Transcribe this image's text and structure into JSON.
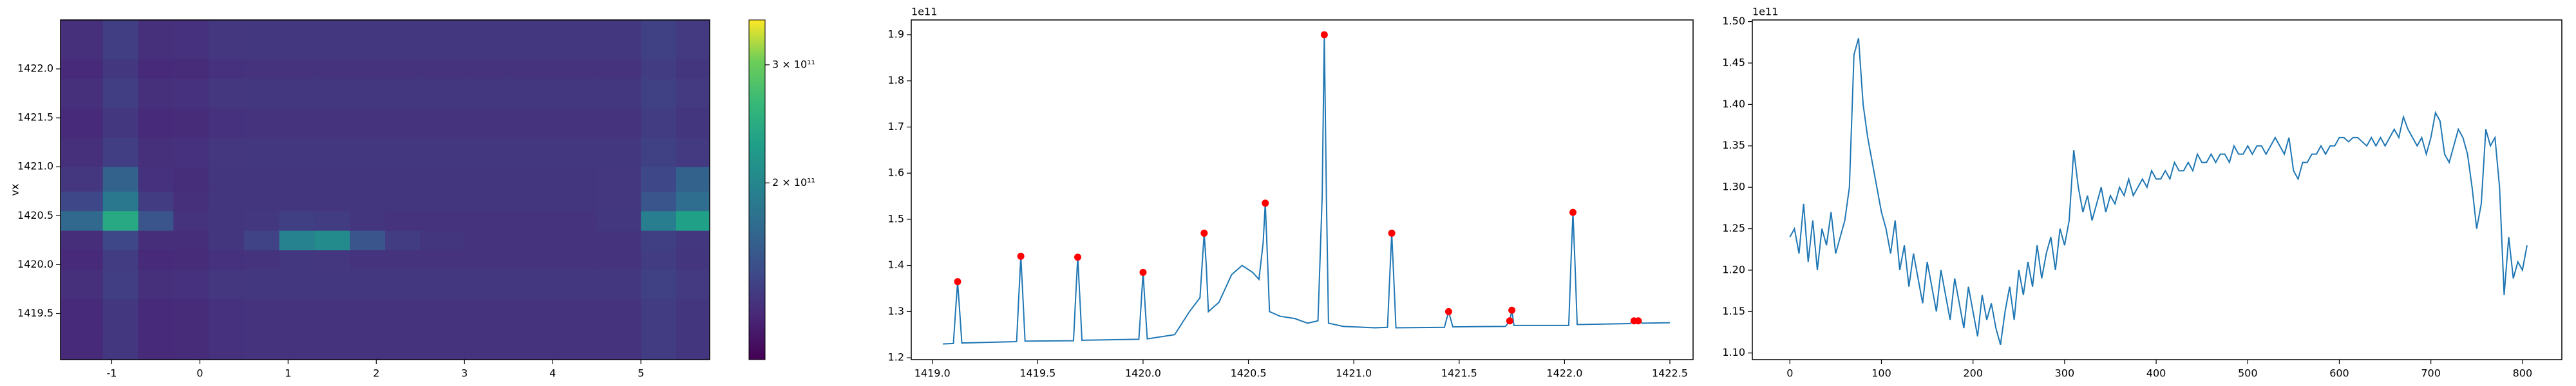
{
  "chart_data": [
    {
      "type": "heatmap",
      "ylabel": "vx",
      "x_edges": [
        -1.58,
        -1.1,
        -0.7,
        -0.3,
        0.1,
        0.5,
        0.9,
        1.3,
        1.7,
        2.1,
        2.5,
        3.0,
        3.5,
        4.0,
        4.5,
        5.0,
        5.4,
        5.78
      ],
      "y_edges": [
        1419.03,
        1419.35,
        1419.65,
        1419.95,
        1420.15,
        1420.35,
        1420.55,
        1420.75,
        1421.0,
        1421.3,
        1421.6,
        1421.9,
        1422.1,
        1422.5
      ],
      "z": [
        [
          128000000000.0,
          136000000000.0,
          128000000000.0,
          129000000000.0,
          132000000000.0,
          133000000000.0,
          133000000000.0,
          133000000000.0,
          133000000000.0,
          133000000000.0,
          133000000000.0,
          133000000000.0,
          133000000000.0,
          133000000000.0,
          133000000000.0,
          138000000000.0,
          134000000000.0
        ],
        [
          128000000000.0,
          136000000000.0,
          128000000000.0,
          129000000000.0,
          132000000000.0,
          133000000000.0,
          133000000000.0,
          133000000000.0,
          133000000000.0,
          133000000000.0,
          133000000000.0,
          133000000000.0,
          133000000000.0,
          133000000000.0,
          133000000000.0,
          138000000000.0,
          134000000000.0
        ],
        [
          131000000000.0,
          139000000000.0,
          131000000000.0,
          132000000000.0,
          135000000000.0,
          136000000000.0,
          136000000000.0,
          136000000000.0,
          136000000000.0,
          136000000000.0,
          136000000000.0,
          136000000000.0,
          136000000000.0,
          136000000000.0,
          136000000000.0,
          141000000000.0,
          137000000000.0
        ],
        [
          128000000000.0,
          138000000000.0,
          128000000000.0,
          129000000000.0,
          132000000000.0,
          133000000000.0,
          136000000000.0,
          135000000000.0,
          133000000000.0,
          133000000000.0,
          133000000000.0,
          133000000000.0,
          133000000000.0,
          133000000000.0,
          133000000000.0,
          138000000000.0,
          134000000000.0
        ],
        [
          130000000000.0,
          145000000000.0,
          130000000000.0,
          130000000000.0,
          134000000000.0,
          142000000000.0,
          195000000000.0,
          205000000000.0,
          155000000000.0,
          138000000000.0,
          134000000000.0,
          133000000000.0,
          133000000000.0,
          133000000000.0,
          133000000000.0,
          140000000000.0,
          136000000000.0
        ],
        [
          170000000000.0,
          240000000000.0,
          155000000000.0,
          133000000000.0,
          134000000000.0,
          136000000000.0,
          140000000000.0,
          138000000000.0,
          134000000000.0,
          133000000000.0,
          133000000000.0,
          133000000000.0,
          133000000000.0,
          133000000000.0,
          136000000000.0,
          190000000000.0,
          230000000000.0
        ],
        [
          145000000000.0,
          185000000000.0,
          138000000000.0,
          131000000000.0,
          134000000000.0,
          134000000000.0,
          134000000000.0,
          134000000000.0,
          134000000000.0,
          134000000000.0,
          134000000000.0,
          134000000000.0,
          134000000000.0,
          134000000000.0,
          135000000000.0,
          155000000000.0,
          175000000000.0
        ],
        [
          135000000000.0,
          165000000000.0,
          132000000000.0,
          130000000000.0,
          134000000000.0,
          134000000000.0,
          134000000000.0,
          134000000000.0,
          134000000000.0,
          134000000000.0,
          134000000000.0,
          134000000000.0,
          134000000000.0,
          134000000000.0,
          135000000000.0,
          145000000000.0,
          165000000000.0
        ],
        [
          131000000000.0,
          139000000000.0,
          131000000000.0,
          132000000000.0,
          135000000000.0,
          136000000000.0,
          136000000000.0,
          136000000000.0,
          136000000000.0,
          136000000000.0,
          136000000000.0,
          136000000000.0,
          136000000000.0,
          136000000000.0,
          136000000000.0,
          141000000000.0,
          137000000000.0
        ],
        [
          128000000000.0,
          136000000000.0,
          128000000000.0,
          129000000000.0,
          132000000000.0,
          133000000000.0,
          133000000000.0,
          133000000000.0,
          133000000000.0,
          133000000000.0,
          133000000000.0,
          133000000000.0,
          133000000000.0,
          133000000000.0,
          133000000000.0,
          138000000000.0,
          134000000000.0
        ],
        [
          131000000000.0,
          139000000000.0,
          131000000000.0,
          132000000000.0,
          135000000000.0,
          136000000000.0,
          136000000000.0,
          136000000000.0,
          136000000000.0,
          136000000000.0,
          136000000000.0,
          136000000000.0,
          136000000000.0,
          136000000000.0,
          136000000000.0,
          141000000000.0,
          137000000000.0
        ],
        [
          128000000000.0,
          136000000000.0,
          128000000000.0,
          129000000000.0,
          132000000000.0,
          133000000000.0,
          133000000000.0,
          133000000000.0,
          133000000000.0,
          133000000000.0,
          133000000000.0,
          133000000000.0,
          133000000000.0,
          133000000000.0,
          133000000000.0,
          138000000000.0,
          134000000000.0
        ],
        [
          131000000000.0,
          139000000000.0,
          131000000000.0,
          132000000000.0,
          135000000000.0,
          136000000000.0,
          136000000000.0,
          136000000000.0,
          136000000000.0,
          136000000000.0,
          136000000000.0,
          136000000000.0,
          136000000000.0,
          136000000000.0,
          136000000000.0,
          141000000000.0,
          137000000000.0
        ]
      ],
      "xlim": [
        -1.58,
        5.78
      ],
      "ylim": [
        1419.03,
        1422.5
      ],
      "xticks": [
        -1,
        0,
        1,
        2,
        3,
        4,
        5
      ],
      "yticks": [
        1419.5,
        {
          "value": 1420,
          "label": "1420.0"
        },
        1420.5,
        {
          "value": 1421,
          "label": "1421.0"
        },
        1421.5,
        {
          "value": 1422,
          "label": "1422.0"
        }
      ],
      "colorbar": {
        "colormap": "viridis",
        "scale": "log",
        "lim": [
          109000000000.0,
          350000000000.0
        ],
        "ticks": [
          {
            "value": 200000000000.0,
            "label": "2 × 10¹¹"
          },
          {
            "value": 300000000000.0,
            "label": "3 × 10¹¹"
          }
        ]
      }
    },
    {
      "type": "line",
      "offset_text": "1e11",
      "xlim": [
        1418.9,
        1422.61
      ],
      "ylim": [
        1.196,
        1.932
      ],
      "xticks": [
        {
          "value": 1419,
          "label": "1419.0"
        },
        1419.5,
        {
          "value": 1420,
          "label": "1420.0"
        },
        1420.5,
        {
          "value": 1421,
          "label": "1421.0"
        },
        1421.5,
        {
          "value": 1422,
          "label": "1422.0"
        },
        1422.5
      ],
      "yticks": [
        1.2,
        1.3,
        1.4,
        1.5,
        1.6,
        1.7,
        1.8,
        1.9
      ],
      "series": [
        {
          "color": "#1f77b4",
          "x": [
            1419.05,
            1419.1,
            1419.11,
            1419.12,
            1419.13,
            1419.14,
            1419.4,
            1419.41,
            1419.42,
            1419.43,
            1419.44,
            1419.67,
            1419.68,
            1419.69,
            1419.7,
            1419.71,
            1419.98,
            1419.99,
            1420.0,
            1420.01,
            1420.02,
            1420.15,
            1420.22,
            1420.27,
            1420.28,
            1420.29,
            1420.3,
            1420.31,
            1420.36,
            1420.42,
            1420.47,
            1420.52,
            1420.55,
            1420.57,
            1420.58,
            1420.59,
            1420.6,
            1420.65,
            1420.72,
            1420.78,
            1420.83,
            1420.85,
            1420.86,
            1420.87,
            1420.88,
            1420.95,
            1421.1,
            1421.16,
            1421.17,
            1421.18,
            1421.19,
            1421.2,
            1421.43,
            1421.45,
            1421.47,
            1421.72,
            1421.74,
            1421.75,
            1421.76,
            1422.02,
            1422.03,
            1422.04,
            1422.05,
            1422.06,
            1422.31,
            1422.33,
            1422.35,
            1422.37,
            1422.5
          ],
          "values": [
            1.23,
            1.231,
            1.3,
            1.365,
            1.3,
            1.232,
            1.235,
            1.33,
            1.42,
            1.33,
            1.236,
            1.237,
            1.33,
            1.418,
            1.33,
            1.238,
            1.24,
            1.31,
            1.385,
            1.31,
            1.241,
            1.25,
            1.3,
            1.33,
            1.4,
            1.47,
            1.4,
            1.3,
            1.32,
            1.38,
            1.4,
            1.385,
            1.37,
            1.45,
            1.535,
            1.42,
            1.3,
            1.29,
            1.285,
            1.275,
            1.28,
            1.55,
            1.9,
            1.55,
            1.275,
            1.268,
            1.265,
            1.266,
            1.37,
            1.47,
            1.37,
            1.265,
            1.266,
            1.3,
            1.267,
            1.268,
            1.28,
            1.303,
            1.27,
            1.27,
            1.4,
            1.515,
            1.4,
            1.272,
            1.274,
            1.28,
            1.28,
            1.275,
            1.276
          ]
        },
        {
          "color": "#ff0000",
          "marker": "o",
          "x": [
            1419.12,
            1419.42,
            1419.69,
            1420.0,
            1420.29,
            1420.58,
            1420.86,
            1421.18,
            1421.45,
            1421.74,
            1421.75,
            1422.04,
            1422.33,
            1422.35
          ],
          "values": [
            1.365,
            1.42,
            1.418,
            1.385,
            1.47,
            1.535,
            1.9,
            1.47,
            1.3,
            1.28,
            1.303,
            1.515,
            1.28,
            1.28
          ]
        }
      ]
    },
    {
      "type": "line",
      "offset_text": "1e11",
      "xlim": [
        -41,
        843
      ],
      "ylim": [
        1.092,
        1.502
      ],
      "xticks": [
        0,
        100,
        200,
        300,
        400,
        500,
        600,
        700,
        800
      ],
      "yticks": [
        {
          "value": 1.1,
          "label": "1.10"
        },
        1.15,
        {
          "value": 1.2,
          "label": "1.20"
        },
        1.25,
        {
          "value": 1.3,
          "label": "1.30"
        },
        1.35,
        {
          "value": 1.4,
          "label": "1.40"
        },
        1.45,
        {
          "value": 1.5,
          "label": "1.50"
        }
      ],
      "series": [
        {
          "color": "#1f77b4",
          "x": [
            0,
            5,
            10,
            15,
            20,
            25,
            30,
            35,
            40,
            45,
            50,
            55,
            60,
            65,
            70,
            75,
            80,
            85,
            90,
            95,
            100,
            105,
            110,
            115,
            120,
            125,
            130,
            135,
            140,
            145,
            150,
            155,
            160,
            165,
            170,
            175,
            180,
            185,
            190,
            195,
            200,
            205,
            210,
            215,
            220,
            225,
            230,
            235,
            240,
            245,
            250,
            255,
            260,
            265,
            270,
            275,
            280,
            285,
            290,
            295,
            300,
            305,
            310,
            315,
            320,
            325,
            330,
            335,
            340,
            345,
            350,
            355,
            360,
            365,
            370,
            375,
            380,
            385,
            390,
            395,
            400,
            405,
            410,
            415,
            420,
            425,
            430,
            435,
            440,
            445,
            450,
            455,
            460,
            465,
            470,
            475,
            480,
            485,
            490,
            495,
            500,
            505,
            510,
            515,
            520,
            525,
            530,
            535,
            540,
            545,
            550,
            555,
            560,
            565,
            570,
            575,
            580,
            585,
            590,
            595,
            600,
            605,
            610,
            615,
            620,
            625,
            630,
            635,
            640,
            645,
            650,
            655,
            660,
            665,
            670,
            675,
            680,
            685,
            690,
            695,
            700,
            705,
            710,
            715,
            720,
            725,
            730,
            735,
            740,
            745,
            750,
            755,
            760,
            765,
            770,
            775,
            780,
            785,
            790,
            795,
            800,
            805
          ],
          "values": [
            1.24,
            1.25,
            1.22,
            1.28,
            1.21,
            1.26,
            1.2,
            1.25,
            1.23,
            1.27,
            1.22,
            1.24,
            1.26,
            1.3,
            1.46,
            1.48,
            1.4,
            1.36,
            1.33,
            1.3,
            1.27,
            1.25,
            1.22,
            1.26,
            1.2,
            1.23,
            1.18,
            1.22,
            1.19,
            1.16,
            1.21,
            1.18,
            1.15,
            1.2,
            1.17,
            1.14,
            1.19,
            1.16,
            1.13,
            1.18,
            1.15,
            1.12,
            1.17,
            1.14,
            1.16,
            1.13,
            1.11,
            1.15,
            1.18,
            1.14,
            1.2,
            1.17,
            1.21,
            1.18,
            1.23,
            1.19,
            1.22,
            1.24,
            1.2,
            1.25,
            1.23,
            1.26,
            1.345,
            1.3,
            1.27,
            1.29,
            1.26,
            1.28,
            1.3,
            1.27,
            1.29,
            1.28,
            1.3,
            1.29,
            1.31,
            1.29,
            1.3,
            1.31,
            1.3,
            1.32,
            1.31,
            1.31,
            1.32,
            1.31,
            1.33,
            1.32,
            1.32,
            1.33,
            1.32,
            1.34,
            1.33,
            1.33,
            1.34,
            1.33,
            1.34,
            1.34,
            1.33,
            1.35,
            1.34,
            1.34,
            1.35,
            1.34,
            1.35,
            1.35,
            1.34,
            1.35,
            1.36,
            1.35,
            1.34,
            1.36,
            1.32,
            1.31,
            1.33,
            1.33,
            1.34,
            1.34,
            1.35,
            1.34,
            1.35,
            1.35,
            1.36,
            1.36,
            1.355,
            1.36,
            1.36,
            1.355,
            1.35,
            1.36,
            1.35,
            1.36,
            1.35,
            1.36,
            1.37,
            1.36,
            1.385,
            1.37,
            1.36,
            1.35,
            1.36,
            1.34,
            1.36,
            1.39,
            1.38,
            1.34,
            1.33,
            1.35,
            1.37,
            1.36,
            1.34,
            1.3,
            1.25,
            1.28,
            1.37,
            1.35,
            1.36,
            1.3,
            1.17,
            1.24,
            1.19,
            1.21,
            1.2,
            1.23
          ]
        }
      ]
    }
  ]
}
